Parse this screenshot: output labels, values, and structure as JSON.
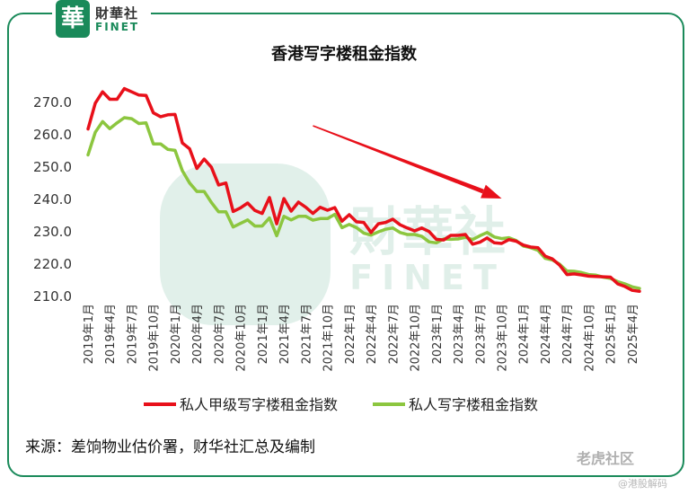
{
  "logo": {
    "mark": "華",
    "cn": "財華社",
    "en": "FINET"
  },
  "watermark": {
    "cn": "財華社",
    "en": "FINET",
    "corner": "老虎社区",
    "corner_sub": "@港股解码"
  },
  "source_text": "来源：差饷物业估价署，财华社汇总及编制",
  "colors": {
    "series1": "#e8101a",
    "series2": "#8cc63f",
    "arrow": "#e8101a",
    "accent": "#1a8a5a"
  },
  "chart_data": {
    "type": "line",
    "title": "香港写字楼租金指数",
    "xlabel": "",
    "ylabel": "",
    "ylim": [
      210,
      275
    ],
    "yticks": [
      210.0,
      220.0,
      230.0,
      240.0,
      250.0,
      260.0,
      270.0
    ],
    "ytick_labels": [
      "210.0",
      "220.0",
      "230.0",
      "240.0",
      "250.0",
      "260.0",
      "270.0"
    ],
    "grid": false,
    "legend": "bottom",
    "x": [
      "2019年1月",
      "2019年2月",
      "2019年3月",
      "2019年4月",
      "2019年5月",
      "2019年6月",
      "2019年7月",
      "2019年8月",
      "2019年9月",
      "2019年10月",
      "2019年11月",
      "2019年12月",
      "2020年1月",
      "2020年2月",
      "2020年3月",
      "2020年4月",
      "2020年5月",
      "2020年6月",
      "2020年7月",
      "2020年8月",
      "2020年9月",
      "2020年10月",
      "2020年11月",
      "2020年12月",
      "2021年1月",
      "2021年2月",
      "2021年3月",
      "2021年4月",
      "2021年5月",
      "2021年6月",
      "2021年7月",
      "2021年8月",
      "2021年9月",
      "2021年10月",
      "2021年11月",
      "2021年12月",
      "2022年1月",
      "2022年2月",
      "2022年3月",
      "2022年4月",
      "2022年5月",
      "2022年6月",
      "2022年7月",
      "2022年8月",
      "2022年9月",
      "2022年10月",
      "2022年11月",
      "2022年12月",
      "2023年1月",
      "2023年2月",
      "2023年3月",
      "2023年4月",
      "2023年5月",
      "2023年6月",
      "2023年7月",
      "2023年8月",
      "2023年9月",
      "2023年10月",
      "2023年11月",
      "2023年12月",
      "2024年1月",
      "2024年2月",
      "2024年3月",
      "2024年4月",
      "2024年5月",
      "2024年6月",
      "2024年7月",
      "2024年8月",
      "2024年9月",
      "2024年10月",
      "2024年11月",
      "2024年12月",
      "2025年1月",
      "2025年2月",
      "2025年3月",
      "2025年4月",
      "2025年5月"
    ],
    "xtick_labels": [
      "2019年1月",
      "2019年4月",
      "2019年7月",
      "2019年10月",
      "2020年1月",
      "2020年4月",
      "2020年7月",
      "2020年10月",
      "2021年1月",
      "2021年4月",
      "2021年7月",
      "2021年10月",
      "2022年1月",
      "2022年4月",
      "2022年7月",
      "2022年10月",
      "2023年1月",
      "2023年4月",
      "2023年7月",
      "2023年10月",
      "2024年1月",
      "2024年4月",
      "2024年7月",
      "2024年10月",
      "2025年1月",
      "2025年4月"
    ],
    "series": [
      {
        "name": "私人甲级写字楼租金指数",
        "color": "#e8101a",
        "values": [
          261.5,
          269.5,
          273.0,
          270.7,
          270.7,
          274.0,
          273.0,
          272.0,
          271.9,
          266.5,
          265.3,
          265.9,
          266.0,
          257.2,
          255.4,
          249.3,
          252.2,
          249.7,
          244.2,
          244.8,
          236.0,
          237.1,
          238.6,
          236.3,
          235.4,
          240.3,
          232.2,
          240.0,
          236.1,
          238.9,
          237.3,
          235.4,
          237.3,
          236.4,
          237.2,
          233.0,
          235.0,
          232.8,
          232.6,
          229.5,
          232.2,
          232.6,
          233.6,
          231.9,
          230.9,
          230.0,
          230.9,
          229.8,
          227.4,
          227.2,
          228.6,
          228.6,
          228.9,
          225.9,
          226.5,
          227.8,
          226.3,
          226.1,
          227.3,
          226.8,
          225.6,
          225.0,
          224.8,
          222.2,
          221.3,
          219.4,
          216.5,
          216.7,
          216.4,
          216.0,
          215.9,
          215.8,
          215.7,
          213.6,
          212.8,
          211.6,
          211.3
        ]
      },
      {
        "name": "私人写字楼租金指数",
        "color": "#8cc63f",
        "values": [
          253.5,
          260.5,
          263.8,
          261.6,
          263.4,
          265.0,
          264.7,
          263.2,
          263.4,
          256.9,
          256.9,
          255.2,
          254.9,
          248.6,
          244.8,
          242.2,
          242.2,
          238.8,
          235.9,
          235.9,
          231.2,
          232.3,
          233.4,
          231.5,
          231.5,
          234.0,
          228.5,
          234.5,
          233.4,
          234.5,
          234.5,
          233.3,
          233.8,
          233.8,
          235.1,
          231.0,
          232.0,
          231.0,
          229.3,
          228.7,
          229.7,
          230.5,
          230.9,
          229.5,
          228.9,
          228.9,
          228.3,
          226.6,
          226.3,
          227.5,
          227.4,
          227.5,
          228.0,
          227.3,
          228.5,
          229.5,
          228.1,
          227.6,
          227.9,
          227.0,
          225.3,
          224.8,
          224.0,
          221.5,
          221.0,
          219.7,
          217.6,
          217.5,
          217.1,
          216.5,
          216.3,
          215.7,
          215.3,
          214.3,
          213.6,
          212.7,
          212.2
        ]
      }
    ],
    "annotations": [
      {
        "type": "arrow",
        "direction": "down-right",
        "from_x": "2021年8月",
        "to_x": "2023年10月",
        "from_y": 262.5,
        "to_y": 240.0
      }
    ]
  }
}
